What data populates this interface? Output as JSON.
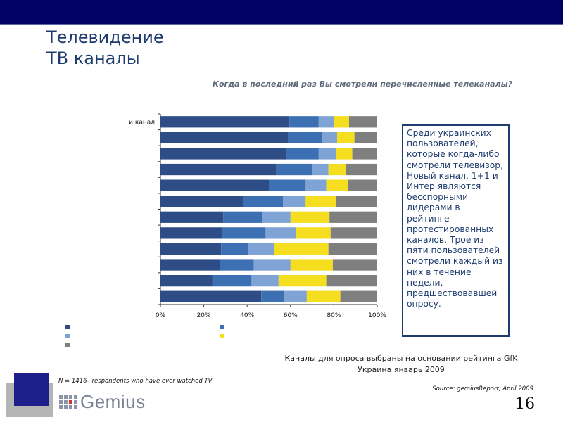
{
  "header": {
    "title_line1": "Телевидение",
    "title_line2": "ТВ каналы"
  },
  "question": "Когда в последний раз Вы смотрели перечисленные телеканалы?",
  "callout": "Среди украинских пользователей, которые когда-либо смотрели телевизор, Новый канал, 1+1 и Интер являются бесспорными лидерами в рейтинге протестированных каналов. Трое из пяти пользователей смотрели каждый из них в течение недели, предшествовавшей опросу.",
  "basis_line1": "Каналы для опроса выбраны на основании рейтинга GfK",
  "basis_line2": "Украина январь 2009",
  "footnote": "N = 1416– respondents who have ever watched TV",
  "source": "Source: gemiusReport, April 2009",
  "page_number": "16",
  "logo_text": "Gemius",
  "colors": {
    "dark_blue": "#2e4d86",
    "mid_blue": "#3d6fb3",
    "light_blue": "#7fa3d4",
    "yellow": "#f5de1f",
    "grey": "#7f7f7f",
    "header": "#000066"
  },
  "chart_data": {
    "type": "bar",
    "orientation": "horizontal-stacked-100",
    "categories": [
      "и канал",
      "",
      "",
      "",
      "",
      "",
      "",
      "",
      "",
      "",
      "",
      ""
    ],
    "series": [
      {
        "name": "",
        "color": "#2e4d86",
        "values": [
          59.5,
          59,
          58,
          53.5,
          50,
          38,
          29,
          28.5,
          28,
          27.5,
          24,
          46.5
        ]
      },
      {
        "name": "",
        "color": "#3d6fb3",
        "values": [
          13.5,
          15.5,
          15,
          16.5,
          17,
          18.5,
          18,
          20,
          12.5,
          15.5,
          18,
          10.5
        ]
      },
      {
        "name": "",
        "color": "#7fa3d4",
        "values": [
          7,
          7,
          8,
          7.5,
          9.5,
          10.5,
          13,
          14,
          12,
          17,
          12.5,
          10.5
        ]
      },
      {
        "name": "",
        "color": "#f5de1f",
        "values": [
          7,
          8,
          7.5,
          8,
          10,
          14,
          18,
          16,
          25,
          19.5,
          22,
          15.5
        ]
      },
      {
        "name": "",
        "color": "#7f7f7f",
        "values": [
          13,
          10.5,
          11.5,
          14.5,
          13.5,
          19,
          22,
          21.5,
          22.5,
          20.5,
          23.5,
          17
        ]
      }
    ],
    "x_ticks": [
      "0%",
      "20%",
      "40%",
      "60%",
      "80%",
      "100%"
    ],
    "xlim": [
      0,
      100
    ],
    "title": "",
    "xlabel": "",
    "ylabel": "",
    "legend": "bottom-left"
  }
}
